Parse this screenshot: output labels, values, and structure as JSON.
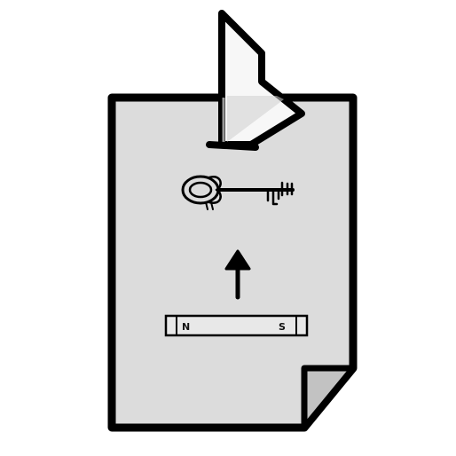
{
  "illustration": {
    "page": {
      "icon": "document-with-folded-corner",
      "fill_color": "#dcdcdc",
      "outline_color": "#000000",
      "corner_fold_color": "#c2c2c2"
    },
    "flag": {
      "icon": "translucent-flag-clip",
      "fill_color": "#f7f7f7",
      "highlight_color": "#cfcfcf"
    },
    "key": {
      "icon": "skeleton-key"
    },
    "arrow": {
      "icon": "up-arrow",
      "direction": "up"
    },
    "magnet": {
      "icon": "bar-magnet",
      "fill_color": "#e8e8e8",
      "north_label": "N",
      "south_label": "S"
    }
  }
}
